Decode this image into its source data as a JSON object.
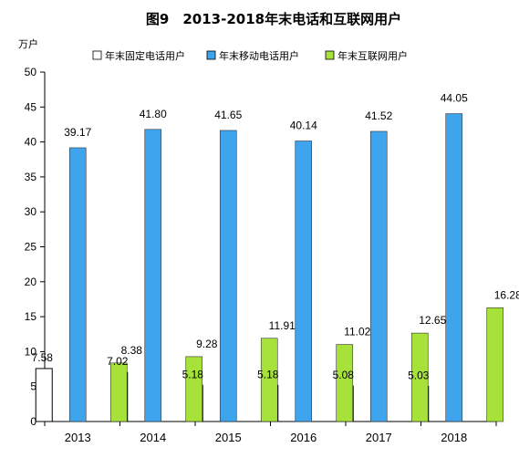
{
  "chart_data": {
    "type": "bar",
    "title": "图9　2013-2018年末电话和互联网用户",
    "ylabel": "万户",
    "xlabel": "",
    "ylim": [
      0,
      50
    ],
    "yticks": [
      0,
      5,
      10,
      15,
      20,
      25,
      30,
      35,
      40,
      45,
      50
    ],
    "categories": [
      "2013",
      "2014",
      "2015",
      "2016",
      "2017",
      "2018"
    ],
    "legend_position": "top",
    "grid": false,
    "series": [
      {
        "name": "年末固定电话用户",
        "color": "#ffffff",
        "values": [
          7.58,
          7.02,
          5.18,
          5.18,
          5.08,
          5.03
        ],
        "labels": [
          "7.58",
          "7.02",
          "5.18",
          "5.18",
          "5.08",
          "5.03"
        ]
      },
      {
        "name": "年末移动电话用户",
        "color": "#3ea4ee",
        "values": [
          39.17,
          41.8,
          41.65,
          40.14,
          41.52,
          44.05
        ],
        "labels": [
          "39.17",
          "41.80",
          "41.65",
          "40.14",
          "41.52",
          "44.05"
        ]
      },
      {
        "name": "年末互联网用户",
        "color": "#a6e23a",
        "values": [
          8.38,
          9.28,
          11.91,
          11.02,
          12.65,
          16.28
        ],
        "labels": [
          "8.38",
          "9.28",
          "11.91",
          "11.02",
          "12.65",
          "16.28"
        ]
      }
    ]
  }
}
